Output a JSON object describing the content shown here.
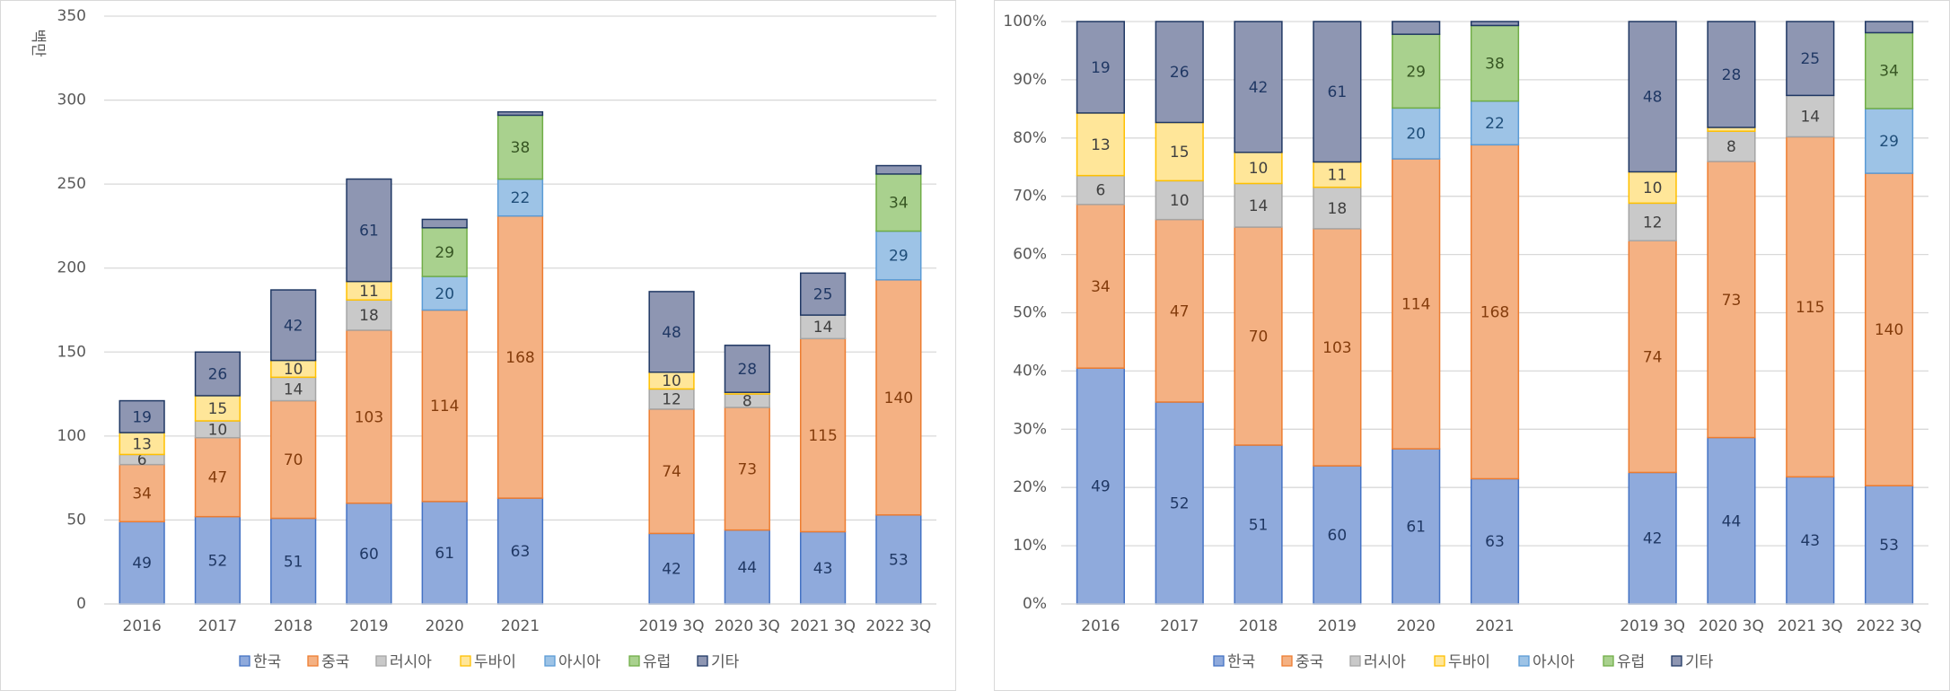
{
  "chart_data": [
    {
      "type": "stacked_bar",
      "y_label": "백만",
      "categories": [
        "2016",
        "2017",
        "2018",
        "2019",
        "2020",
        "2021",
        null,
        "2019 3Q",
        "2020 3Q",
        "2021 3Q",
        "2022 3Q"
      ],
      "ylim": [
        0,
        350
      ],
      "yticks": [
        0,
        50,
        100,
        150,
        200,
        250,
        300,
        350
      ],
      "grid": true,
      "legend": "bottom",
      "series": [
        {
          "name": "한국",
          "color": "#8faadc",
          "values": [
            49,
            52,
            51,
            60,
            61,
            63,
            null,
            42,
            44,
            43,
            53
          ]
        },
        {
          "name": "중국",
          "color": "#f4b183",
          "values": [
            34,
            47,
            70,
            103,
            114,
            168,
            null,
            74,
            73,
            115,
            140
          ]
        },
        {
          "name": "러시아",
          "color": "#c9c9c9",
          "values": [
            6,
            10,
            14,
            18,
            null,
            null,
            null,
            12,
            8,
            14,
            null
          ]
        },
        {
          "name": "두바이",
          "color": "#ffe699",
          "values": [
            13,
            15,
            10,
            11,
            null,
            null,
            null,
            10,
            1,
            null,
            null
          ]
        },
        {
          "name": "아시아",
          "color": "#9dc3e6",
          "values": [
            null,
            null,
            null,
            null,
            20,
            22,
            null,
            null,
            null,
            null,
            29
          ]
        },
        {
          "name": "유럽",
          "color": "#a9d18e",
          "values": [
            null,
            null,
            null,
            null,
            29,
            38,
            null,
            null,
            null,
            null,
            34
          ]
        },
        {
          "name": "기타",
          "color": "#8e96b2",
          "values": [
            19,
            26,
            42,
            61,
            5,
            2,
            null,
            48,
            28,
            25,
            5
          ]
        }
      ]
    },
    {
      "type": "percent_stacked_bar",
      "categories": [
        "2016",
        "2017",
        "2018",
        "2019",
        "2020",
        "2021",
        null,
        "2019 3Q",
        "2020 3Q",
        "2021 3Q",
        "2022 3Q"
      ],
      "ylim": [
        0,
        100
      ],
      "yticks": [
        {
          "value": 0,
          "label": "0%"
        },
        {
          "value": 10,
          "label": "10%"
        },
        {
          "value": 20,
          "label": "20%"
        },
        {
          "value": 30,
          "label": "30%"
        },
        {
          "value": 40,
          "label": "40%"
        },
        {
          "value": 50,
          "label": "50%"
        },
        {
          "value": 60,
          "label": "60%"
        },
        {
          "value": 70,
          "label": "70%"
        },
        {
          "value": 80,
          "label": "80%"
        },
        {
          "value": 90,
          "label": "90%"
        },
        {
          "value": 100,
          "label": "100%"
        }
      ],
      "grid": true,
      "legend": "bottom",
      "series": [
        {
          "name": "한국",
          "color": "#8faadc",
          "values": [
            49,
            52,
            51,
            60,
            61,
            63,
            null,
            42,
            44,
            43,
            53
          ]
        },
        {
          "name": "중국",
          "color": "#f4b183",
          "values": [
            34,
            47,
            70,
            103,
            114,
            168,
            null,
            74,
            73,
            115,
            140
          ]
        },
        {
          "name": "러시아",
          "color": "#c9c9c9",
          "values": [
            6,
            10,
            14,
            18,
            null,
            null,
            null,
            12,
            8,
            14,
            null
          ]
        },
        {
          "name": "두바이",
          "color": "#ffe699",
          "values": [
            13,
            15,
            10,
            11,
            null,
            null,
            null,
            10,
            1,
            null,
            null
          ]
        },
        {
          "name": "아시아",
          "color": "#9dc3e6",
          "values": [
            null,
            null,
            null,
            null,
            20,
            22,
            null,
            null,
            null,
            null,
            29
          ]
        },
        {
          "name": "유럽",
          "color": "#a9d18e",
          "values": [
            null,
            null,
            null,
            null,
            29,
            38,
            null,
            null,
            null,
            null,
            34
          ]
        },
        {
          "name": "기타",
          "color": "#8e96b2",
          "values": [
            19,
            26,
            42,
            61,
            5,
            2,
            null,
            48,
            28,
            25,
            5
          ]
        }
      ]
    }
  ]
}
